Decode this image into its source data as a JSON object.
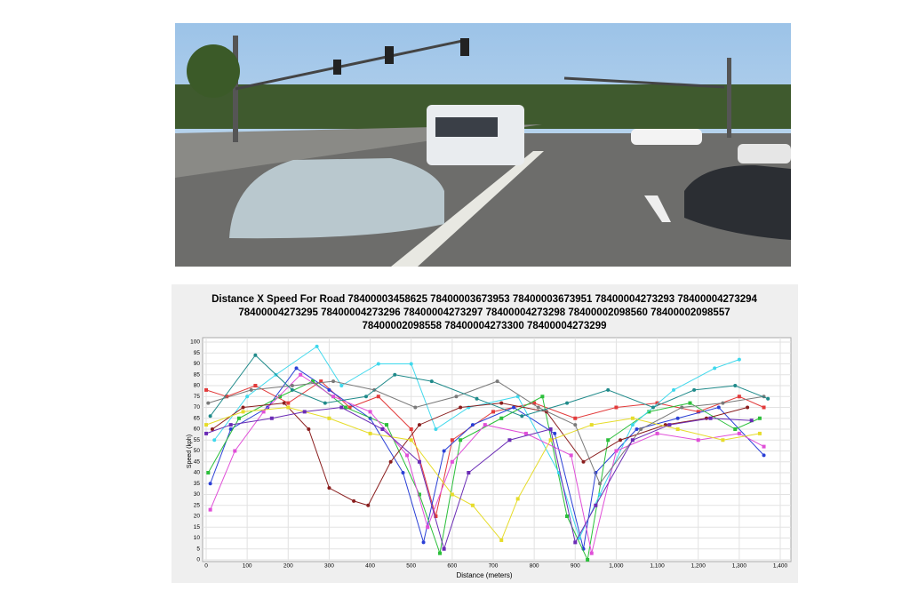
{
  "chart_data": {
    "type": "line",
    "title": [
      "Distance X Speed For Road 78400003458625 78400003673953 78400003673951 78400004273293 78400004273294",
      "78400004273295 78400004273296 78400004273297 78400004273298 78400002098560 78400002098557",
      "78400002098558 78400004273300 78400004273299"
    ],
    "xlabel": "Distance (meters)",
    "ylabel": "Speed (kph)",
    "xlim": [
      0,
      1400
    ],
    "ylim": [
      0,
      100
    ],
    "grid": true,
    "xticks": [
      0,
      100,
      200,
      300,
      400,
      500,
      600,
      700,
      800,
      900,
      {
        "value": 1000,
        "label": "1,000"
      },
      {
        "value": 1100,
        "label": "1,100"
      },
      {
        "value": 1200,
        "label": "1,200"
      },
      {
        "value": 1300,
        "label": "1,300"
      },
      {
        "value": 1400,
        "label": "1,400"
      }
    ],
    "yticks": [
      0,
      5,
      10,
      15,
      20,
      25,
      30,
      35,
      40,
      45,
      50,
      55,
      60,
      65,
      70,
      75,
      80,
      85,
      90,
      95,
      100
    ],
    "series": [
      {
        "color": "#e23b3b",
        "x": [
          0,
          50,
          120,
          200,
          280,
          350,
          420,
          500,
          560,
          600,
          700,
          800,
          900,
          1000,
          1100,
          1200,
          1300,
          1360
        ],
        "values": [
          78,
          75,
          80,
          72,
          82,
          70,
          75,
          60,
          20,
          55,
          68,
          72,
          65,
          70,
          72,
          68,
          75,
          70
        ]
      },
      {
        "color": "#2a3fd6",
        "x": [
          10,
          60,
          150,
          220,
          300,
          400,
          480,
          530,
          580,
          650,
          750,
          850,
          920,
          950,
          1050,
          1150,
          1250,
          1360
        ],
        "values": [
          35,
          60,
          70,
          88,
          78,
          65,
          40,
          8,
          50,
          62,
          70,
          58,
          5,
          40,
          60,
          65,
          70,
          48
        ]
      },
      {
        "color": "#2bbf3a",
        "x": [
          5,
          80,
          180,
          260,
          340,
          440,
          520,
          570,
          620,
          720,
          820,
          880,
          930,
          980,
          1080,
          1180,
          1290,
          1350
        ],
        "values": [
          40,
          65,
          75,
          82,
          70,
          62,
          30,
          3,
          55,
          65,
          75,
          20,
          0,
          55,
          68,
          72,
          60,
          65
        ]
      },
      {
        "color": "#3fd8ec",
        "x": [
          20,
          100,
          170,
          270,
          330,
          420,
          500,
          560,
          640,
          760,
          860,
          910,
          960,
          1040,
          1140,
          1240,
          1300
        ],
        "values": [
          55,
          75,
          85,
          98,
          80,
          90,
          90,
          60,
          70,
          75,
          40,
          10,
          30,
          62,
          78,
          88,
          92
        ]
      },
      {
        "color": "#e04fd8",
        "x": [
          10,
          70,
          140,
          230,
          310,
          400,
          490,
          540,
          600,
          680,
          780,
          890,
          940,
          1000,
          1100,
          1200,
          1300,
          1360
        ],
        "values": [
          23,
          50,
          68,
          85,
          75,
          68,
          48,
          15,
          45,
          62,
          58,
          48,
          3,
          50,
          58,
          55,
          58,
          52
        ]
      },
      {
        "color": "#8a1e1e",
        "x": [
          15,
          90,
          190,
          250,
          300,
          360,
          395,
          450,
          520,
          620,
          720,
          830,
          920,
          1010,
          1120,
          1220,
          1320
        ],
        "values": [
          60,
          70,
          72,
          60,
          33,
          27,
          25,
          45,
          62,
          70,
          72,
          68,
          45,
          55,
          62,
          65,
          70
        ]
      },
      {
        "color": "#e6dc2a",
        "x": [
          0,
          90,
          200,
          300,
          400,
          500,
          600,
          650,
          720,
          760,
          840,
          940,
          1040,
          1150,
          1260,
          1350
        ],
        "values": [
          62,
          68,
          70,
          65,
          58,
          55,
          30,
          25,
          9,
          28,
          55,
          62,
          65,
          60,
          55,
          58
        ]
      },
      {
        "color": "#7a7a7a",
        "x": [
          5,
          110,
          210,
          310,
          410,
          510,
          610,
          710,
          810,
          900,
          960,
          1060,
          1160,
          1260,
          1360
        ],
        "values": [
          72,
          78,
          80,
          82,
          78,
          70,
          75,
          82,
          70,
          62,
          35,
          60,
          70,
          72,
          75
        ]
      },
      {
        "color": "#6a2bb5",
        "x": [
          0,
          60,
          160,
          240,
          330,
          430,
          520,
          580,
          640,
          740,
          840,
          900,
          950,
          1040,
          1130,
          1230,
          1330
        ],
        "values": [
          58,
          62,
          65,
          68,
          70,
          60,
          45,
          5,
          40,
          55,
          60,
          8,
          25,
          55,
          62,
          65,
          64
        ]
      },
      {
        "color": "#1f8a8a",
        "x": [
          10,
          120,
          210,
          290,
          390,
          460,
          550,
          660,
          770,
          880,
          980,
          1090,
          1190,
          1290,
          1370
        ],
        "values": [
          66,
          94,
          78,
          72,
          75,
          85,
          82,
          74,
          66,
          72,
          78,
          70,
          78,
          80,
          74
        ]
      }
    ]
  }
}
